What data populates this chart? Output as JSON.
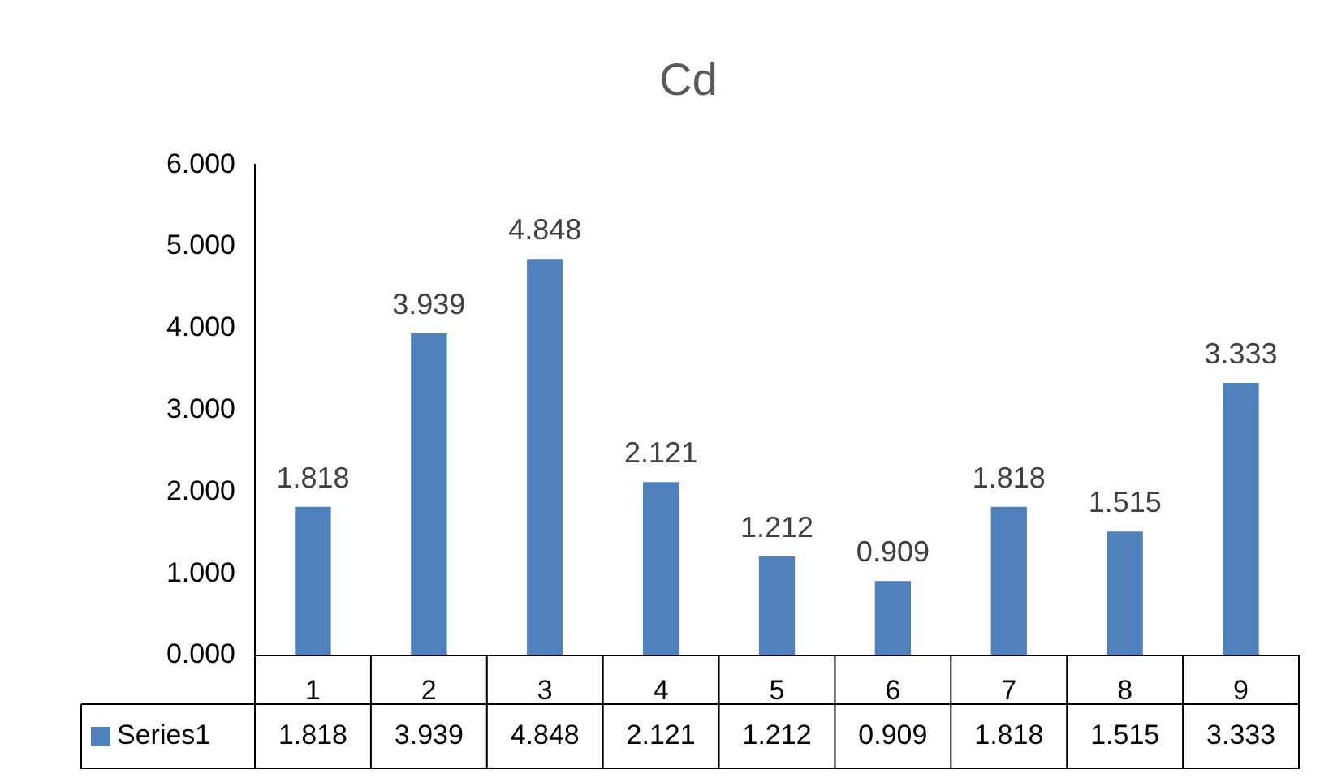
{
  "chart_data": {
    "type": "bar",
    "title": "Cd",
    "categories": [
      "1",
      "2",
      "3",
      "4",
      "5",
      "6",
      "7",
      "8",
      "9"
    ],
    "series": [
      {
        "name": "Series1",
        "color": "#4f81bd",
        "values": [
          1.818,
          3.939,
          4.848,
          2.121,
          1.212,
          0.909,
          1.818,
          1.515,
          3.333
        ]
      }
    ],
    "annotations": [
      {
        "text": "1.818",
        "x": "1",
        "y": 1.818
      },
      {
        "text": "3.939",
        "x": "2",
        "y": 3.939
      },
      {
        "text": "4.848",
        "x": "3",
        "y": 4.848
      },
      {
        "text": "2.121",
        "x": "4",
        "y": 2.121
      },
      {
        "text": "1.212",
        "x": "5",
        "y": 1.212
      },
      {
        "text": "0.909",
        "x": "6",
        "y": 0.909
      },
      {
        "text": "1.818",
        "x": "7",
        "y": 1.818
      },
      {
        "text": "1.515",
        "x": "8",
        "y": 1.515
      },
      {
        "text": "3.333",
        "x": "9",
        "y": 3.333
      }
    ],
    "ylim": [
      0,
      6
    ],
    "yticks": [
      {
        "value": 0,
        "label": "0.000"
      },
      {
        "value": 1,
        "label": "1.000"
      },
      {
        "value": 2,
        "label": "2.000"
      },
      {
        "value": 3,
        "label": "3.000"
      },
      {
        "value": 4,
        "label": "4.000"
      },
      {
        "value": 5,
        "label": "5.000"
      },
      {
        "value": 6,
        "label": "6.000"
      }
    ],
    "data_labels": true,
    "grid": false
  }
}
